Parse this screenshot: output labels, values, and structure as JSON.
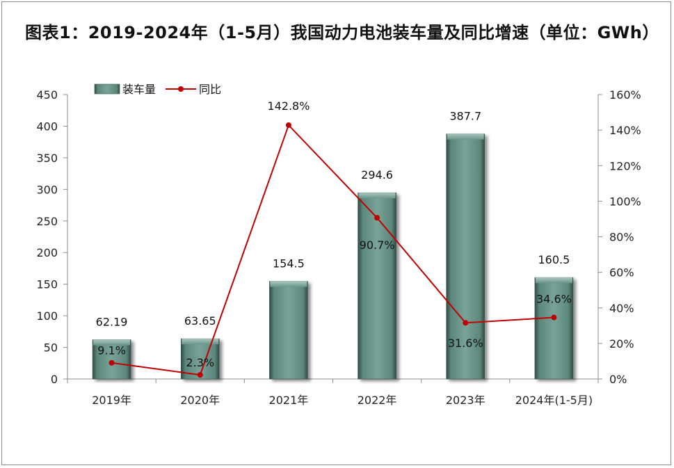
{
  "chart_data": {
    "type": "bar",
    "title": "图表1：2019-2024年（1-5月）我国动力电池装车量及同比增速（单位：GWh）",
    "categories": [
      "2019年",
      "2020年",
      "2021年",
      "2022年",
      "2023年",
      "2024年(1-5月)"
    ],
    "series": [
      {
        "name": "装车量",
        "type": "bar",
        "axis": "left",
        "color": "#6b958a",
        "values": [
          62.19,
          63.65,
          154.5,
          294.6,
          387.7,
          160.5
        ],
        "labels": [
          "62.19",
          "63.65",
          "154.5",
          "294.6",
          "387.7",
          "160.5"
        ]
      },
      {
        "name": "同比",
        "type": "line",
        "axis": "right",
        "color": "#c00000",
        "values": [
          9.1,
          2.3,
          142.8,
          90.7,
          31.6,
          34.6
        ],
        "labels": [
          "9.1%",
          "2.3%",
          "142.8%",
          "90.7%",
          "31.6%",
          "34.6%"
        ]
      }
    ],
    "y_left": {
      "min": 0,
      "max": 450,
      "step": 50,
      "ticks": [
        "0",
        "50",
        "100",
        "150",
        "200",
        "250",
        "300",
        "350",
        "400",
        "450"
      ]
    },
    "y_right": {
      "min": 0,
      "max": 160,
      "step": 20,
      "ticks": [
        "0%",
        "20%",
        "40%",
        "60%",
        "80%",
        "100%",
        "120%",
        "140%",
        "160%"
      ]
    },
    "legend_position": "top-left",
    "grid": false,
    "xlabel": "",
    "ylabel": ""
  }
}
